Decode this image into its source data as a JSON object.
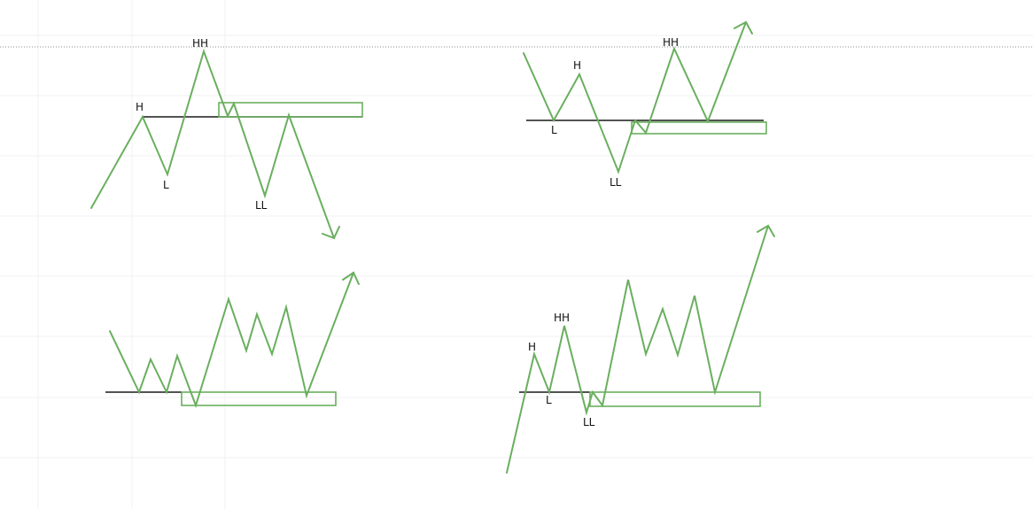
{
  "colors": {
    "price_path": "#6aaf5f",
    "zone": "#6aaf5f",
    "level": "#1a1a1a",
    "grid": "#f1f2f4",
    "dotted": "#8a8f98",
    "label": "#111111"
  },
  "panels": [
    {
      "name": "top-left",
      "labels": {
        "h": "H",
        "hh": "HH",
        "l": "L",
        "ll": "LL"
      }
    },
    {
      "name": "top-right",
      "labels": {
        "h": "H",
        "hh": "HH",
        "l": "L",
        "ll": "LL"
      }
    },
    {
      "name": "bottom-left",
      "labels": {}
    },
    {
      "name": "bottom-right",
      "labels": {
        "h": "H",
        "hh": "HH",
        "l": "L",
        "ll": "LL"
      }
    }
  ]
}
